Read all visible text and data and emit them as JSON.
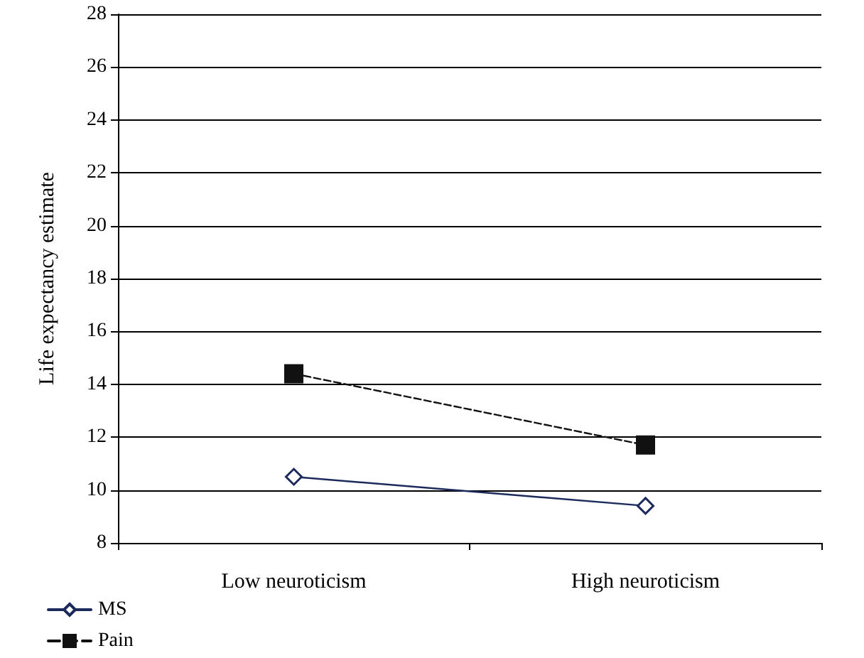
{
  "chart_data": {
    "type": "line",
    "ylabel": "Life expectancy estimate",
    "categories": [
      "Low neuroticism",
      "High neuroticism"
    ],
    "series": [
      {
        "name": "MS",
        "color": "#1c2a5c",
        "values": [
          10.5,
          9.4
        ],
        "marker": "diamond",
        "line_style": "solid"
      },
      {
        "name": "Pain",
        "color": "#111111",
        "values": [
          14.4,
          11.7
        ],
        "marker": "square",
        "line_style": "dashed"
      }
    ],
    "ylim": [
      8,
      28
    ],
    "yticks": [
      8,
      10,
      12,
      14,
      16,
      18,
      20,
      22,
      24,
      26,
      28
    ],
    "grid": "y",
    "legend": "bottom left"
  }
}
